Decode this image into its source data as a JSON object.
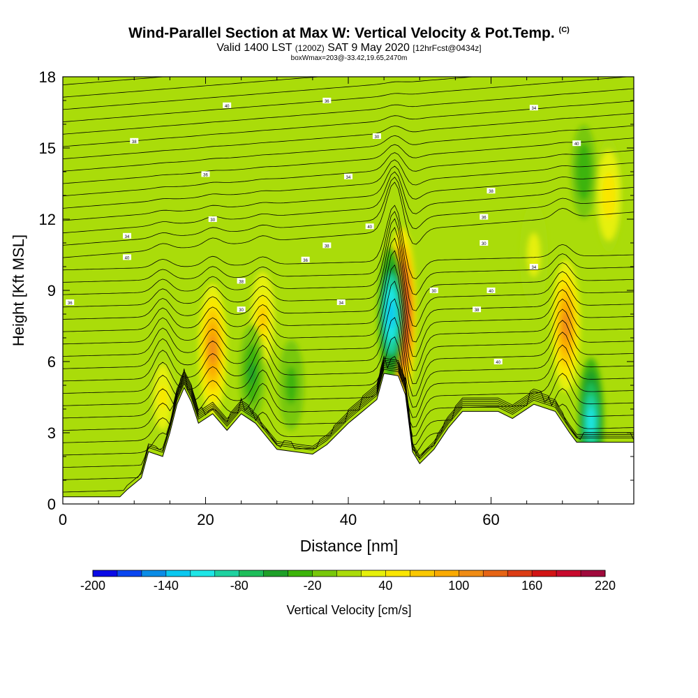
{
  "chart_data": {
    "type": "heatmap",
    "title": "Wind-Parallel Section at Max W: Vertical Velocity & Pot.Temp.",
    "title_mark": "(C)",
    "subtitle_main": "Valid 1400 LST",
    "subtitle_utc": "(1200Z)",
    "subtitle_date": "SAT 9 May 2020",
    "subtitle_fcst": "[12hrFcst@0434z]",
    "subtitle2": "boxWmax=203@-33.42,19.65,2470m",
    "xlabel": "Distance [nm]",
    "ylabel": "Height [Kft MSL]",
    "xlim": [
      0,
      80
    ],
    "ylim": [
      0,
      18
    ],
    "x_ticks": [
      "0",
      "20",
      "40",
      "60"
    ],
    "y_ticks": [
      "0",
      "3",
      "6",
      "9",
      "12",
      "15",
      "18"
    ],
    "colorbar": {
      "label": "Vertical Velocity [cm/s]",
      "min": -200,
      "max": 220,
      "step": 20,
      "tick_labels": [
        "-200",
        "-140",
        "-80",
        "-20",
        "40",
        "100",
        "160",
        "220"
      ],
      "colors": [
        "#0a0ae6",
        "#0a46f0",
        "#0a8ce6",
        "#0ac8f0",
        "#1ee6e6",
        "#1ed2a0",
        "#1ebe5a",
        "#1ea028",
        "#3cb40a",
        "#78c80a",
        "#aadc0a",
        "#e6f00a",
        "#fae600",
        "#fac800",
        "#faaa00",
        "#f08c14",
        "#e66414",
        "#dc3c14",
        "#d21414",
        "#c80a2d",
        "#a00a3c"
      ]
    },
    "contour_labels": [
      "40",
      "36",
      "34",
      "38",
      "30"
    ],
    "terrain_kft": [
      [
        0,
        0.3
      ],
      [
        8,
        0.3
      ],
      [
        9,
        0.6
      ],
      [
        11,
        1.1
      ],
      [
        12,
        2.2
      ],
      [
        14,
        2.0
      ],
      [
        15,
        3.0
      ],
      [
        16,
        4.2
      ],
      [
        17,
        4.9
      ],
      [
        18,
        4.3
      ],
      [
        19,
        3.4
      ],
      [
        21,
        3.8
      ],
      [
        23,
        3.1
      ],
      [
        25,
        3.8
      ],
      [
        27,
        3.4
      ],
      [
        30,
        2.3
      ],
      [
        35,
        2.1
      ],
      [
        37,
        2.5
      ],
      [
        40,
        3.4
      ],
      [
        44,
        4.4
      ],
      [
        45,
        5.5
      ],
      [
        47,
        5.4
      ],
      [
        48,
        4.6
      ],
      [
        49,
        2.2
      ],
      [
        50,
        1.7
      ],
      [
        52,
        2.3
      ],
      [
        54,
        3.2
      ],
      [
        56,
        3.9
      ],
      [
        61,
        3.9
      ],
      [
        63,
        3.6
      ],
      [
        66,
        4.2
      ],
      [
        69,
        3.9
      ],
      [
        71,
        3.0
      ],
      [
        72,
        2.6
      ],
      [
        80,
        2.6
      ]
    ],
    "updrafts": [
      {
        "x": 14,
        "z": 4.5,
        "w": 40
      },
      {
        "x": 21,
        "z": 6.5,
        "w": 100
      },
      {
        "x": 28,
        "z": 7.8,
        "w": 60
      },
      {
        "x": 47.5,
        "z": 8.0,
        "w": 203
      },
      {
        "x": 70.5,
        "z": 7.5,
        "w": 100
      },
      {
        "x": 76.5,
        "z": 13.0,
        "w": 50
      },
      {
        "x": 66,
        "z": 10.5,
        "w": 30
      }
    ],
    "downdrafts": [
      {
        "x": 46,
        "z": 8.0,
        "w": -140
      },
      {
        "x": 74,
        "z": 3.5,
        "w": -120
      },
      {
        "x": 26.5,
        "z": 5.5,
        "w": -50
      },
      {
        "x": 32,
        "z": 5.0,
        "w": -30
      },
      {
        "x": 73,
        "z": 14.0,
        "w": -40
      }
    ]
  }
}
